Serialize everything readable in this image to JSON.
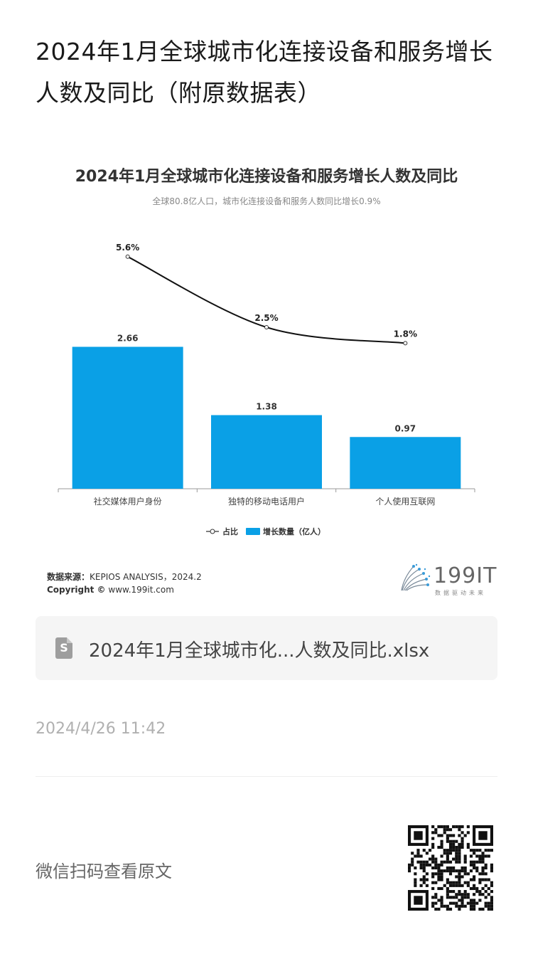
{
  "page_title": "2024年1月全球城市化连接设备和服务增长人数及同比（附原数据表）",
  "chart_data": {
    "type": "bar",
    "title": "2024年1月全球城市化连接设备和服务增长人数及同比",
    "subtitle": "全球80.8亿人口，城市化连接设备和服务人数同比增长0.9%",
    "categories": [
      "社交媒体用户身份",
      "独特的移动电话用户",
      "个人使用互联网"
    ],
    "series": [
      {
        "name": "增长数量（亿人）",
        "type": "bar",
        "values": [
          2.66,
          1.38,
          0.97
        ],
        "labels": [
          "2.66",
          "1.38",
          "0.97"
        ],
        "color": "#0aa0e6"
      },
      {
        "name": "占比",
        "type": "line",
        "values": [
          5.6,
          2.5,
          1.8
        ],
        "labels": [
          "5.6%",
          "2.5%",
          "1.8%"
        ],
        "color": "#111111"
      }
    ],
    "legend_position": "bottom",
    "grid": false
  },
  "source": {
    "label": "数据来源：",
    "text": "KEPIOS ANALYSIS，2024.2",
    "copyright_label": "Copyright ©",
    "copyright_text": "www.199it.com"
  },
  "brand": {
    "name": "199IT",
    "tagline": "数据驱动未来"
  },
  "file": {
    "name": "2024年1月全球城市化...人数及同比.xlsx",
    "icon": "spreadsheet-file-icon"
  },
  "timestamp": "2024/4/26 11:42",
  "wechat_prompt": "微信扫码查看原文",
  "qr_icon": "qr-code-icon"
}
